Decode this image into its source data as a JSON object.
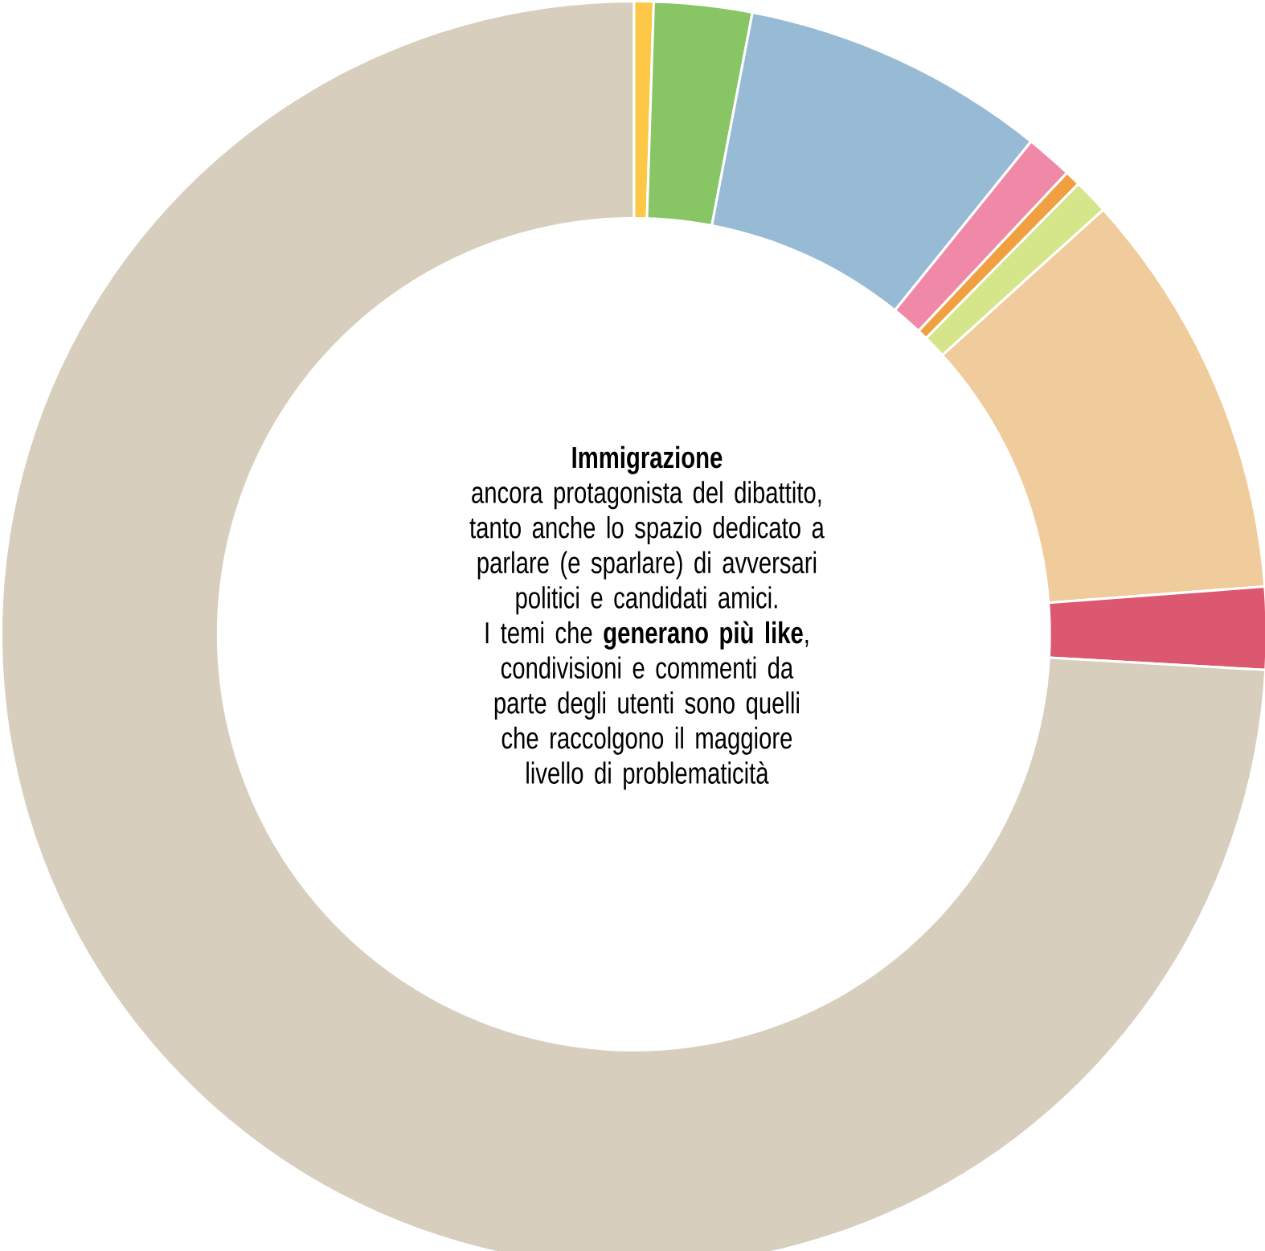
{
  "chart_data": {
    "type": "donut",
    "title": "Immigrazione",
    "subtitle": "ancora protagonista del dibattito, tanto anche lo spazio dedicato a parlare (e sparlare) di avversari politici e candidati amici.",
    "annotations": [
      "I temi che **generano più like**, condivisioni e commenti da parte degli utenti sono quelli che raccolgono il maggiore livello di problematicità"
    ],
    "categories": [
      null,
      null,
      null,
      null,
      null,
      null,
      null,
      null,
      null
    ],
    "values": [
      0.5,
      2.5,
      7.8,
      1.2,
      0.4,
      0.9,
      10.5,
      2.1,
      74.1
    ],
    "colors": [
      "#fcc845",
      "#88c665",
      "#98bbd5",
      "#f088a8",
      "#f0a040",
      "#d4e58a",
      "#f0cb9c",
      "#dc5870",
      "#d8cebd"
    ]
  }
}
